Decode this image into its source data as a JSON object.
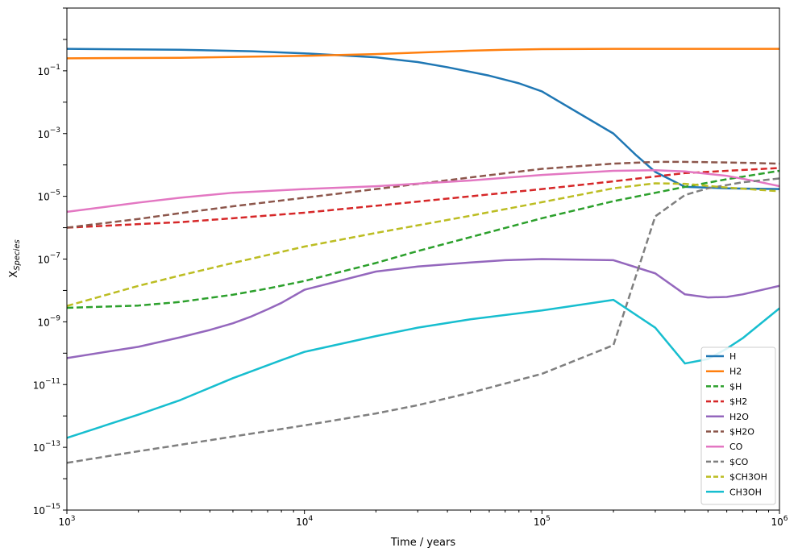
{
  "chart_data": {
    "type": "line",
    "xscale": "log",
    "yscale": "log",
    "xlabel": "Time / years",
    "ylabel_base": "X",
    "ylabel_sub": "Species",
    "xlim": [
      1000,
      1000000
    ],
    "ylim": [
      1e-15,
      10
    ],
    "xticks": [
      {
        "value": 1000,
        "base": "10",
        "exp": "3"
      },
      {
        "value": 10000,
        "base": "10",
        "exp": "4"
      },
      {
        "value": 100000,
        "base": "10",
        "exp": "5"
      },
      {
        "value": 1000000,
        "base": "10",
        "exp": "6"
      }
    ],
    "yticks": [
      {
        "value": 1e-15,
        "base": "10",
        "exp": "−15"
      },
      {
        "value": 1e-13,
        "base": "10",
        "exp": "−13"
      },
      {
        "value": 1e-11,
        "base": "10",
        "exp": "−11"
      },
      {
        "value": 1e-09,
        "base": "10",
        "exp": "−9"
      },
      {
        "value": 1e-07,
        "base": "10",
        "exp": "−7"
      },
      {
        "value": 1e-05,
        "base": "10",
        "exp": "−5"
      },
      {
        "value": 0.001,
        "base": "10",
        "exp": "−3"
      },
      {
        "value": 0.1,
        "base": "10",
        "exp": "−1"
      }
    ],
    "legend_position": "lower-right",
    "series": [
      {
        "name": "H",
        "color": "#1f77b4",
        "dash": "solid",
        "points": [
          [
            1000,
            0.5
          ],
          [
            3000,
            0.47
          ],
          [
            6000,
            0.42
          ],
          [
            10000,
            0.36
          ],
          [
            20000,
            0.27
          ],
          [
            30000,
            0.19
          ],
          [
            40000,
            0.13
          ],
          [
            60000,
            0.07
          ],
          [
            80000,
            0.04
          ],
          [
            100000,
            0.022
          ],
          [
            200000,
            0.001
          ],
          [
            250000,
            0.0002
          ],
          [
            300000,
            6e-05
          ],
          [
            400000,
            2e-05
          ],
          [
            600000,
            1.8e-05
          ],
          [
            1000000,
            1.7e-05
          ]
        ]
      },
      {
        "name": "H2",
        "color": "#ff7f0e",
        "dash": "solid",
        "points": [
          [
            1000,
            0.25
          ],
          [
            3000,
            0.26
          ],
          [
            10000,
            0.3
          ],
          [
            20000,
            0.34
          ],
          [
            30000,
            0.38
          ],
          [
            50000,
            0.44
          ],
          [
            70000,
            0.47
          ],
          [
            100000,
            0.49
          ],
          [
            200000,
            0.5
          ],
          [
            1000000,
            0.5
          ]
        ]
      },
      {
        "name": "$H",
        "color": "#2ca02c",
        "dash": "dashed",
        "points": [
          [
            1000,
            2.8e-09
          ],
          [
            2000,
            3.3e-09
          ],
          [
            3000,
            4.3e-09
          ],
          [
            5000,
            7.3e-09
          ],
          [
            7000,
            1.15e-08
          ],
          [
            10000,
            2e-08
          ],
          [
            20000,
            7.5e-08
          ],
          [
            30000,
            1.8e-07
          ],
          [
            50000,
            5e-07
          ],
          [
            100000,
            2e-06
          ],
          [
            200000,
            7e-06
          ],
          [
            400000,
            2e-05
          ],
          [
            600000,
            3.5e-05
          ],
          [
            1000000,
            6.5e-05
          ]
        ]
      },
      {
        "name": "$H2",
        "color": "#d62728",
        "dash": "dashed",
        "points": [
          [
            1000,
            1e-06
          ],
          [
            2000,
            1.3e-06
          ],
          [
            3000,
            1.5e-06
          ],
          [
            5000,
            2e-06
          ],
          [
            10000,
            3e-06
          ],
          [
            20000,
            5e-06
          ],
          [
            50000,
            1e-05
          ],
          [
            100000,
            1.7e-05
          ],
          [
            200000,
            3e-05
          ],
          [
            400000,
            5.5e-05
          ],
          [
            1000000,
            8e-05
          ]
        ]
      },
      {
        "name": "H2O",
        "color": "#9467bd",
        "dash": "solid",
        "points": [
          [
            1000,
            7e-11
          ],
          [
            2000,
            1.6e-10
          ],
          [
            3000,
            3.2e-10
          ],
          [
            4000,
            5.5e-10
          ],
          [
            5000,
            9e-10
          ],
          [
            6000,
            1.5e-09
          ],
          [
            7000,
            2.5e-09
          ],
          [
            8000,
            4e-09
          ],
          [
            10000,
            1.05e-08
          ],
          [
            20000,
            4e-08
          ],
          [
            30000,
            5.8e-08
          ],
          [
            50000,
            7.8e-08
          ],
          [
            70000,
            9.2e-08
          ],
          [
            100000,
            1e-07
          ],
          [
            200000,
            9.2e-08
          ],
          [
            300000,
            3.5e-08
          ],
          [
            400000,
            7.5e-09
          ],
          [
            500000,
            6e-09
          ],
          [
            600000,
            6.2e-09
          ],
          [
            700000,
            7.5e-09
          ],
          [
            1000000,
            1.4e-08
          ]
        ]
      },
      {
        "name": "$H2O",
        "color": "#8c564b",
        "dash": "dashed",
        "points": [
          [
            1000,
            1e-06
          ],
          [
            2000,
            1.9e-06
          ],
          [
            3000,
            2.9e-06
          ],
          [
            5000,
            4.8e-06
          ],
          [
            10000,
            9e-06
          ],
          [
            20000,
            1.7e-05
          ],
          [
            50000,
            4e-05
          ],
          [
            100000,
            7.5e-05
          ],
          [
            200000,
            0.00011
          ],
          [
            300000,
            0.000125
          ],
          [
            400000,
            0.000125
          ],
          [
            600000,
            0.00012
          ],
          [
            1000000,
            0.00011
          ]
        ]
      },
      {
        "name": "CO",
        "color": "#e377c2",
        "dash": "solid",
        "points": [
          [
            1000,
            3.2e-06
          ],
          [
            2000,
            6.3e-06
          ],
          [
            3000,
            9e-06
          ],
          [
            5000,
            1.3e-05
          ],
          [
            10000,
            1.7e-05
          ],
          [
            20000,
            2.1e-05
          ],
          [
            50000,
            3.2e-05
          ],
          [
            100000,
            4.8e-05
          ],
          [
            200000,
            6.5e-05
          ],
          [
            300000,
            6.8e-05
          ],
          [
            400000,
            6.2e-05
          ],
          [
            600000,
            4.5e-05
          ],
          [
            800000,
            3e-05
          ],
          [
            1000000,
            2.1e-05
          ]
        ]
      },
      {
        "name": "$CO",
        "color": "#7f7f7f",
        "dash": "dashed",
        "points": [
          [
            1000,
            3.2e-14
          ],
          [
            2000,
            7.5e-14
          ],
          [
            3000,
            1.2e-13
          ],
          [
            5000,
            2.2e-13
          ],
          [
            10000,
            5e-13
          ],
          [
            20000,
            1.2e-12
          ],
          [
            30000,
            2.2e-12
          ],
          [
            50000,
            5.5e-12
          ],
          [
            100000,
            2.2e-11
          ],
          [
            200000,
            1.8e-10
          ],
          [
            300000,
            2.3e-06
          ],
          [
            400000,
            1.1e-05
          ],
          [
            500000,
            1.8e-05
          ],
          [
            700000,
            2.8e-05
          ],
          [
            1000000,
            3.7e-05
          ]
        ]
      },
      {
        "name": "$CH3OH",
        "color": "#bcbd22",
        "dash": "dashed",
        "points": [
          [
            1000,
            3.2e-09
          ],
          [
            2000,
            1.4e-08
          ],
          [
            3000,
            3e-08
          ],
          [
            5000,
            7.5e-08
          ],
          [
            10000,
            2.5e-07
          ],
          [
            20000,
            6.8e-07
          ],
          [
            50000,
            2.4e-06
          ],
          [
            100000,
            6.5e-06
          ],
          [
            200000,
            1.8e-05
          ],
          [
            300000,
            2.6e-05
          ],
          [
            400000,
            2.5e-05
          ],
          [
            600000,
            1.9e-05
          ],
          [
            1000000,
            1.45e-05
          ]
        ]
      },
      {
        "name": "CH3OH",
        "color": "#17becf",
        "dash": "solid",
        "points": [
          [
            1000,
            2e-13
          ],
          [
            2000,
            1.1e-12
          ],
          [
            3000,
            3.2e-12
          ],
          [
            5000,
            1.6e-11
          ],
          [
            8000,
            6e-11
          ],
          [
            10000,
            1.1e-10
          ],
          [
            20000,
            3.5e-10
          ],
          [
            30000,
            6.5e-10
          ],
          [
            50000,
            1.2e-09
          ],
          [
            100000,
            2.3e-09
          ],
          [
            200000,
            5e-09
          ],
          [
            300000,
            6.5e-10
          ],
          [
            400000,
            4.7e-11
          ],
          [
            500000,
            6.5e-11
          ],
          [
            600000,
            1.4e-10
          ],
          [
            700000,
            3e-10
          ],
          [
            1000000,
            2.7e-09
          ]
        ]
      }
    ]
  }
}
